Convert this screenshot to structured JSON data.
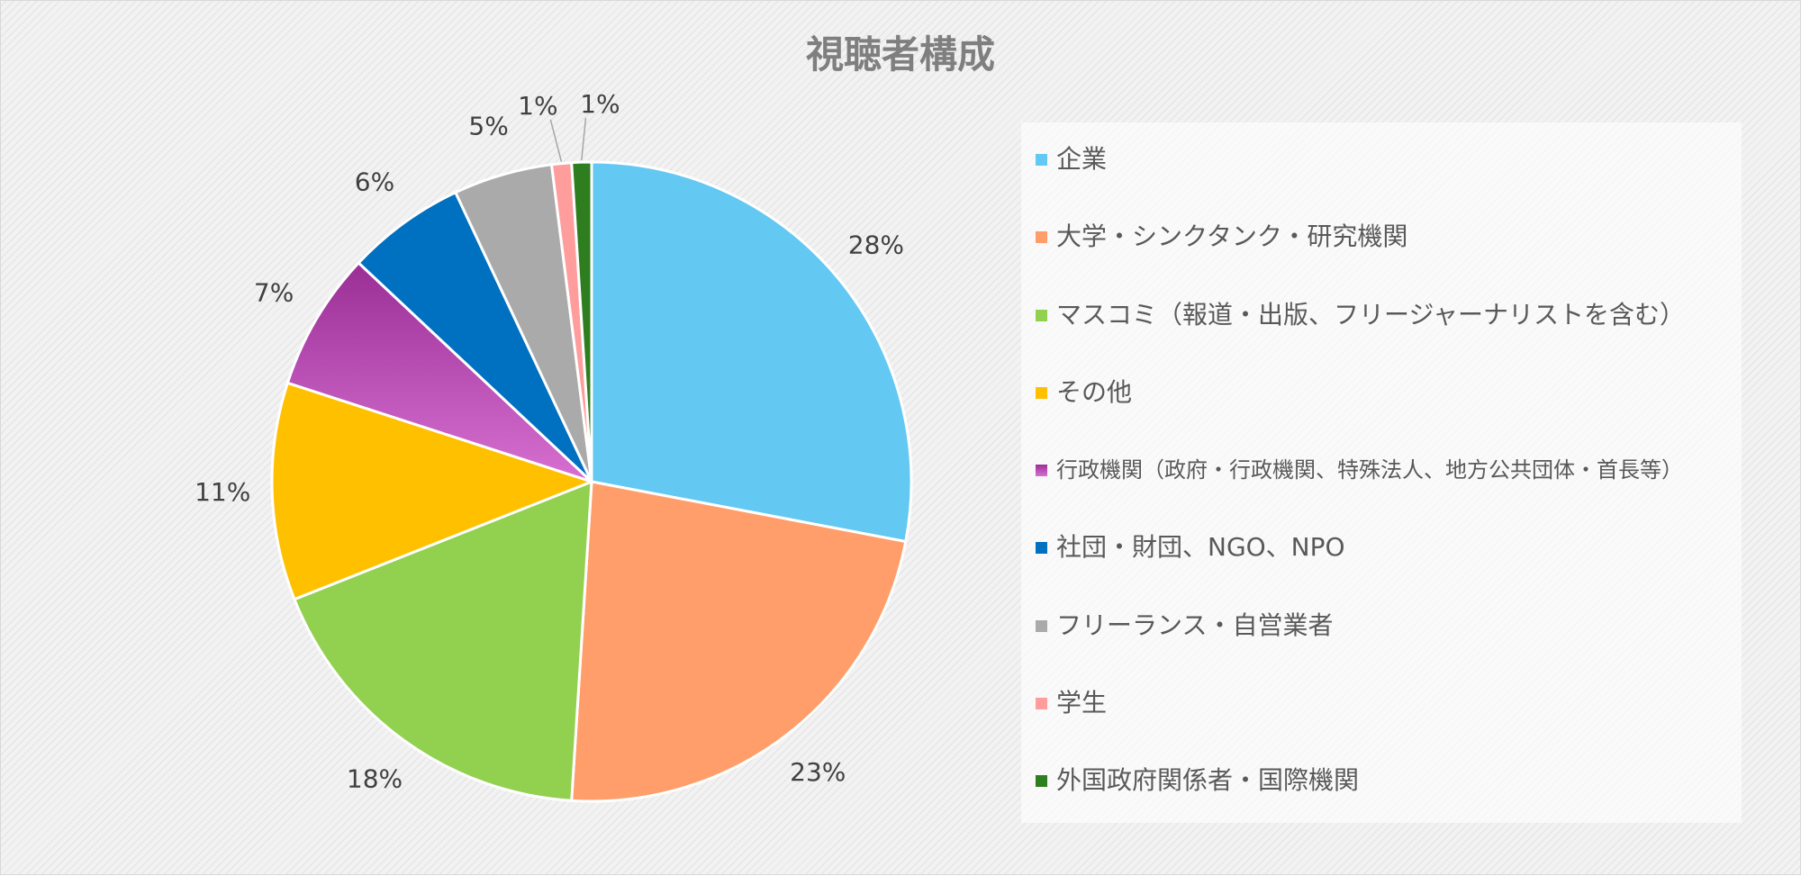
{
  "chart_data": {
    "type": "pie",
    "title": "視聴者構成",
    "labels": [
      "企業",
      "大学・シンクタンク・研究機関",
      "マスコミ（報道・出版、フリージャーナリストを含む）",
      "その他",
      "行政機関（政府・行政機関、特殊法人、地方公共団体・首長等）",
      "社団・財団、NGO、NPO",
      "フリーランス・自営業者",
      "学生",
      "外国政府関係者・国際機関"
    ],
    "values": [
      28,
      23,
      18,
      11,
      7,
      6,
      5,
      1,
      1
    ],
    "value_labels": [
      "28%",
      "23%",
      "18%",
      "11%",
      "7%",
      "6%",
      "5%",
      "1%",
      "1%"
    ],
    "colors": [
      "#63c8f2",
      "#ff9e6a",
      "#92d050",
      "#ffc000",
      "#b94fb6",
      "#0070c0",
      "#aaaaaa",
      "#ff9d9d",
      "#2e7d1f"
    ],
    "legend_position": "right",
    "start_angle": "12 o'clock",
    "direction": "clockwise"
  }
}
